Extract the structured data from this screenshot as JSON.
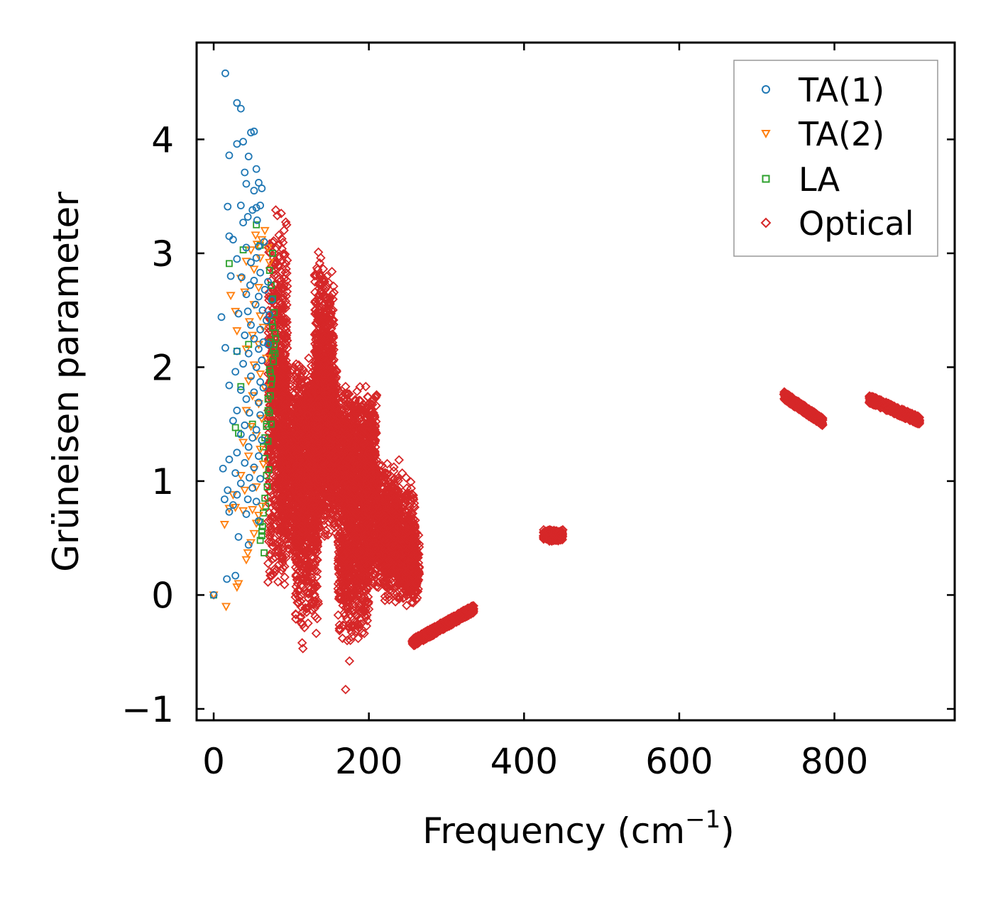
{
  "chart_data": {
    "type": "scatter",
    "title": "",
    "xlabel": "Frequency (cm",
    "xlabel_sup": "−1",
    "xlabel_close": ")",
    "ylabel": "Grüneisen parameter",
    "xlim": [
      -22,
      955
    ],
    "ylim": [
      -1.1,
      4.85
    ],
    "xticks": [
      0,
      200,
      400,
      600,
      800
    ],
    "xtick_labels": [
      "0",
      "200",
      "400",
      "600",
      "800"
    ],
    "yticks": [
      -1,
      0,
      1,
      2,
      3,
      4
    ],
    "ytick_labels": [
      "−1",
      "0",
      "1",
      "2",
      "3",
      "4"
    ],
    "legend_position": "top-right",
    "series": [
      {
        "name": "TA(1)",
        "marker": "circle",
        "color": "#1f77b4",
        "points": [
          [
            0,
            0
          ],
          [
            15,
            4.58
          ],
          [
            30,
            4.32
          ],
          [
            35,
            4.27
          ],
          [
            20,
            3.86
          ],
          [
            30,
            3.96
          ],
          [
            38,
            3.98
          ],
          [
            48,
            4.06
          ],
          [
            52,
            4.07
          ],
          [
            45,
            3.85
          ],
          [
            40,
            3.71
          ],
          [
            55,
            3.74
          ],
          [
            58,
            3.62
          ],
          [
            62,
            3.57
          ],
          [
            42,
            3.61
          ],
          [
            52,
            3.55
          ],
          [
            18,
            3.41
          ],
          [
            35,
            3.42
          ],
          [
            50,
            3.38
          ],
          [
            55,
            3.4
          ],
          [
            60,
            3.42
          ],
          [
            44,
            3.32
          ],
          [
            56,
            3.29
          ],
          [
            38,
            3.27
          ],
          [
            20,
            3.15
          ],
          [
            25,
            3.12
          ],
          [
            42,
            3.05
          ],
          [
            58,
            3.06
          ],
          [
            65,
            3.1
          ],
          [
            30,
            2.95
          ],
          [
            48,
            2.92
          ],
          [
            55,
            2.96
          ],
          [
            22,
            2.8
          ],
          [
            36,
            2.79
          ],
          [
            47,
            2.72
          ],
          [
            52,
            2.76
          ],
          [
            60,
            2.83
          ],
          [
            70,
            2.75
          ],
          [
            42,
            2.64
          ],
          [
            58,
            2.62
          ],
          [
            66,
            2.68
          ],
          [
            75,
            2.59
          ],
          [
            10,
            2.44
          ],
          [
            32,
            2.47
          ],
          [
            44,
            2.49
          ],
          [
            54,
            2.55
          ],
          [
            63,
            2.5
          ],
          [
            72,
            2.46
          ],
          [
            48,
            2.37
          ],
          [
            60,
            2.33
          ],
          [
            68,
            2.41
          ],
          [
            40,
            2.28
          ],
          [
            52,
            2.25
          ],
          [
            64,
            2.22
          ],
          [
            15,
            2.17
          ],
          [
            30,
            2.14
          ],
          [
            45,
            2.12
          ],
          [
            58,
            2.16
          ],
          [
            70,
            2.2
          ],
          [
            38,
            2.03
          ],
          [
            55,
            2.0
          ],
          [
            62,
            2.06
          ],
          [
            28,
            1.96
          ],
          [
            48,
            1.92
          ],
          [
            60,
            1.87
          ],
          [
            20,
            1.84
          ],
          [
            35,
            1.8
          ],
          [
            52,
            1.78
          ],
          [
            64,
            1.82
          ],
          [
            42,
            1.72
          ],
          [
            58,
            1.69
          ],
          [
            30,
            1.62
          ],
          [
            46,
            1.6
          ],
          [
            60,
            1.58
          ],
          [
            25,
            1.53
          ],
          [
            40,
            1.49
          ],
          [
            55,
            1.45
          ],
          [
            35,
            1.41
          ],
          [
            50,
            1.38
          ],
          [
            62,
            1.36
          ],
          [
            45,
            1.3
          ],
          [
            30,
            1.25
          ],
          [
            58,
            1.22
          ],
          [
            20,
            1.19
          ],
          [
            40,
            1.16
          ],
          [
            52,
            1.12
          ],
          [
            12,
            1.11
          ],
          [
            28,
            1.07
          ],
          [
            46,
            1.03
          ],
          [
            60,
            1.02
          ],
          [
            35,
            0.98
          ],
          [
            50,
            0.94
          ],
          [
            18,
            0.92
          ],
          [
            30,
            0.88
          ],
          [
            44,
            0.84
          ],
          [
            55,
            0.82
          ],
          [
            14,
            0.84
          ],
          [
            25,
            0.79
          ],
          [
            42,
            0.71
          ],
          [
            58,
            0.65
          ],
          [
            20,
            0.73
          ],
          [
            32,
            0.51
          ],
          [
            45,
            0.44
          ],
          [
            28,
            0.17
          ],
          [
            17,
            0.14
          ]
        ]
      },
      {
        "name": "TA(2)",
        "marker": "triangle-down",
        "color": "#ff7f0e",
        "points": [
          [
            0,
            0
          ],
          [
            16,
            -0.1
          ],
          [
            30,
            0.07
          ],
          [
            32,
            0.1
          ],
          [
            42,
            0.31
          ],
          [
            44,
            0.37
          ],
          [
            48,
            0.46
          ],
          [
            52,
            0.54
          ],
          [
            55,
            0.63
          ],
          [
            58,
            0.7
          ],
          [
            14,
            0.62
          ],
          [
            20,
            0.76
          ],
          [
            28,
            0.77
          ],
          [
            38,
            0.74
          ],
          [
            50,
            0.75
          ],
          [
            62,
            0.78
          ],
          [
            25,
            0.88
          ],
          [
            40,
            0.92
          ],
          [
            55,
            0.95
          ],
          [
            35,
            1.05
          ],
          [
            52,
            1.1
          ],
          [
            64,
            1.15
          ],
          [
            45,
            1.22
          ],
          [
            60,
            1.28
          ],
          [
            38,
            1.34
          ],
          [
            55,
            1.4
          ],
          [
            48,
            1.48
          ],
          [
            62,
            1.55
          ],
          [
            42,
            1.62
          ],
          [
            58,
            1.68
          ],
          [
            50,
            1.75
          ],
          [
            66,
            1.82
          ],
          [
            45,
            1.88
          ],
          [
            60,
            1.94
          ],
          [
            52,
            2.02
          ],
          [
            68,
            2.08
          ],
          [
            42,
            2.16
          ],
          [
            58,
            2.2
          ],
          [
            50,
            2.28
          ],
          [
            64,
            2.35
          ],
          [
            30,
            2.32
          ],
          [
            46,
            2.4
          ],
          [
            60,
            2.45
          ],
          [
            28,
            2.49
          ],
          [
            52,
            2.55
          ],
          [
            22,
            2.63
          ],
          [
            40,
            2.66
          ],
          [
            58,
            2.7
          ],
          [
            35,
            2.78
          ],
          [
            52,
            2.86
          ],
          [
            42,
            2.93
          ],
          [
            60,
            2.96
          ],
          [
            48,
            3.03
          ],
          [
            56,
            3.08
          ],
          [
            62,
            3.12
          ],
          [
            54,
            3.16
          ],
          [
            66,
            3.2
          ],
          [
            70,
            3.05
          ],
          [
            72,
            2.92
          ]
        ]
      },
      {
        "name": "LA",
        "marker": "square",
        "color": "#2ca02c",
        "points": [
          [
            0,
            0
          ],
          [
            20,
            2.91
          ],
          [
            28,
            1.47
          ],
          [
            32,
            1.42
          ],
          [
            35,
            1.83
          ],
          [
            38,
            3.03
          ],
          [
            55,
            3.25
          ],
          [
            60,
            3.07
          ],
          [
            65,
            0.37
          ],
          [
            62,
            0.52
          ],
          [
            63,
            0.6
          ],
          [
            60,
            0.64
          ],
          [
            64,
            0.72
          ],
          [
            66,
            0.85
          ],
          [
            68,
            1.05
          ],
          [
            66,
            1.2
          ],
          [
            70,
            1.35
          ],
          [
            68,
            1.48
          ],
          [
            72,
            1.6
          ],
          [
            70,
            1.72
          ],
          [
            74,
            1.85
          ],
          [
            72,
            1.98
          ],
          [
            76,
            2.1
          ],
          [
            74,
            2.22
          ],
          [
            76,
            2.35
          ],
          [
            78,
            2.48
          ],
          [
            76,
            2.6
          ],
          [
            74,
            2.72
          ],
          [
            72,
            2.85
          ],
          [
            76,
            3.0
          ],
          [
            60,
            0.48
          ],
          [
            62,
            0.56
          ],
          [
            64,
            1.3
          ],
          [
            66,
            1.38
          ],
          [
            68,
            1.5
          ],
          [
            70,
            1.62
          ],
          [
            73,
            1.75
          ],
          [
            75,
            1.9
          ],
          [
            77,
            2.05
          ],
          [
            78,
            2.2
          ],
          [
            79,
            2.3
          ],
          [
            75,
            2.4
          ],
          [
            71,
            1.1
          ],
          [
            69,
            0.95
          ],
          [
            67,
            0.78
          ],
          [
            73,
            1.95
          ],
          [
            77,
            2.15
          ],
          [
            79,
            2.12
          ],
          [
            80,
            2.25
          ],
          [
            30,
            2.14
          ],
          [
            45,
            2.2
          ],
          [
            50,
            1.5
          ],
          [
            74,
            1.5
          ]
        ]
      },
      {
        "name": "Optical",
        "marker": "diamond",
        "color": "#d62728",
        "clusters": [
          {
            "x": [
              70,
              95
            ],
            "y": [
              0.0,
              3.4
            ],
            "n": 700
          },
          {
            "x": [
              85,
              120
            ],
            "y": [
              0.2,
              2.1
            ],
            "n": 700
          },
          {
            "x": [
              105,
              135
            ],
            "y": [
              -0.45,
              2.0
            ],
            "n": 600
          },
          {
            "x": [
              120,
              160
            ],
            "y": [
              0.5,
              2.1
            ],
            "n": 800
          },
          {
            "x": [
              130,
              155
            ],
            "y": [
              0.9,
              3.0
            ],
            "n": 600
          },
          {
            "x": [
              150,
              210
            ],
            "y": [
              0.6,
              1.85
            ],
            "n": 1000
          },
          {
            "x": [
              160,
              200
            ],
            "y": [
              -0.45,
              1.3
            ],
            "n": 700
          },
          {
            "x": [
              195,
              240
            ],
            "y": [
              0.0,
              1.2
            ],
            "n": 700
          },
          {
            "x": [
              220,
              260
            ],
            "y": [
              -0.1,
              1.0
            ],
            "n": 500
          },
          {
            "x": [
              245,
              265
            ],
            "y": [
              -0.1,
              0.6
            ],
            "n": 250
          },
          {
            "x": [
              256,
              335
            ],
            "y": [
              -0.42,
              -0.12
            ],
            "n": 700,
            "kind": "band"
          },
          {
            "x": [
              425,
              450
            ],
            "y": [
              0.47,
              0.58
            ],
            "n": 300
          },
          {
            "x": [
              735,
              785
            ],
            "y": [
              1.52,
              1.75
            ],
            "n": 400,
            "kind": "band"
          },
          {
            "x": [
              845,
              910
            ],
            "y": [
              1.53,
              1.72
            ],
            "n": 450,
            "kind": "band"
          }
        ],
        "points": [
          [
            170,
            -0.83
          ],
          [
            175,
            -0.58
          ],
          [
            166,
            -0.38
          ],
          [
            172,
            -0.4
          ],
          [
            115,
            -0.47
          ],
          [
            114,
            -0.42
          ],
          [
            80,
            3.38
          ],
          [
            87,
            3.35
          ],
          [
            135,
            3.01
          ],
          [
            138,
            2.96
          ],
          [
            170,
            1.83
          ],
          [
            196,
            1.83
          ],
          [
            243,
            1.07
          ],
          [
            248,
            1.03
          ],
          [
            233,
            0.85
          ],
          [
            254,
            0.87
          ],
          [
            260,
            0.27
          ],
          [
            263,
            0.33
          ],
          [
            94,
            3.25
          ],
          [
            78,
            3.0
          ]
        ]
      }
    ]
  }
}
